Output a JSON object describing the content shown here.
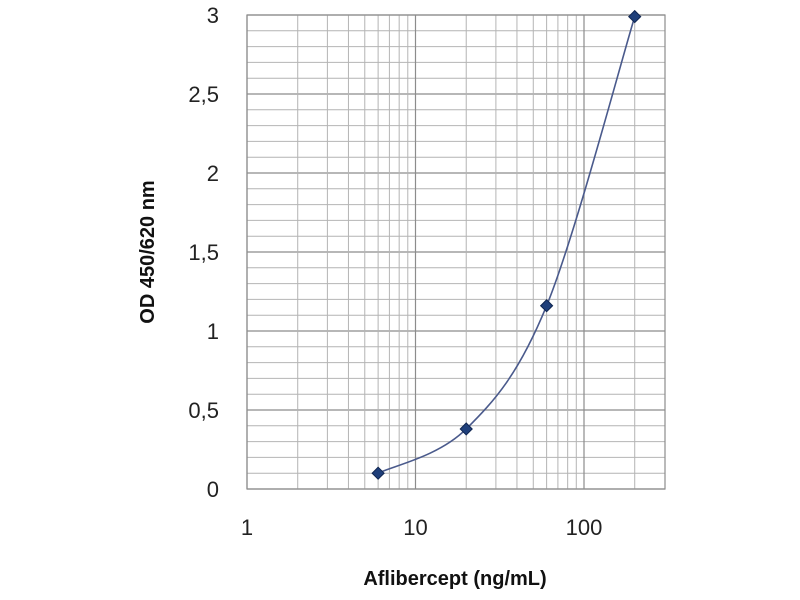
{
  "chart_data": {
    "type": "line",
    "title": "",
    "xlabel": "Aflibercept (ng/mL)",
    "ylabel": "OD 450/620 nm",
    "x_scale": "log",
    "xlim": [
      1,
      200
    ],
    "ylim": [
      0,
      3
    ],
    "grid": true,
    "x_ticks": [
      {
        "value": 1,
        "label": "1"
      },
      {
        "value": 10,
        "label": "10"
      },
      {
        "value": 100,
        "label": "100"
      }
    ],
    "y_ticks": [
      {
        "value": 0,
        "label": "0"
      },
      {
        "value": 0.5,
        "label": "0,5"
      },
      {
        "value": 1,
        "label": "1"
      },
      {
        "value": 1.5,
        "label": "1,5"
      },
      {
        "value": 2,
        "label": "2"
      },
      {
        "value": 2.5,
        "label": "2,5"
      },
      {
        "value": 3,
        "label": "3"
      }
    ],
    "series": [
      {
        "color": "#4a5a8c",
        "marker": "diamond",
        "marker_color": "#1f3f7a",
        "smooth": true,
        "points": [
          {
            "x": 6,
            "y": 0.1
          },
          {
            "x": 20,
            "y": 0.38
          },
          {
            "x": 60,
            "y": 1.16
          },
          {
            "x": 200,
            "y": 2.99
          }
        ]
      }
    ]
  }
}
